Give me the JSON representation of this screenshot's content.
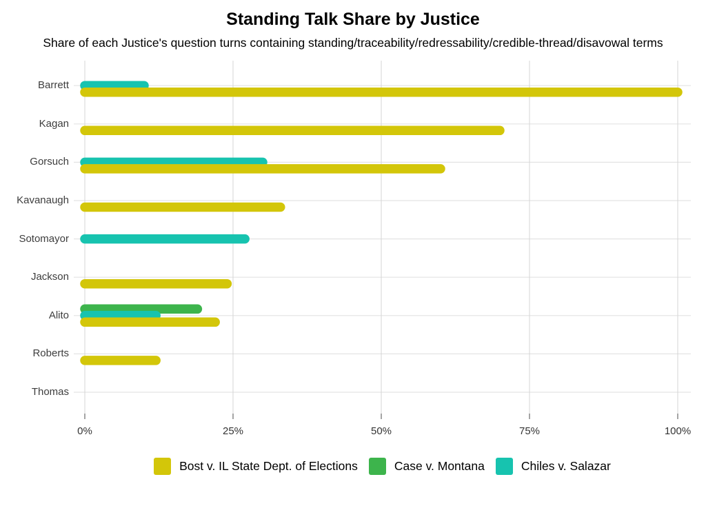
{
  "chart_data": {
    "type": "bar",
    "orientation": "horizontal",
    "title": "Standing Talk Share by Justice",
    "subtitle": "Share of each Justice's question turns containing standing/traceability/redressability/credible-thread/disavowal terms",
    "value_unit": "percent",
    "categories": [
      "Barrett",
      "Kagan",
      "Gorsuch",
      "Kavanaugh",
      "Sotomayor",
      "Jackson",
      "Alito",
      "Roberts",
      "Thomas"
    ],
    "series": [
      {
        "name": "Bost v. IL State Dept. of Elections",
        "color": "#d3c609",
        "values": [
          100,
          70,
          60,
          33,
          null,
          24,
          22,
          12,
          null
        ]
      },
      {
        "name": "Case v. Montana",
        "color": "#3db44c",
        "values": [
          null,
          null,
          null,
          null,
          null,
          null,
          19,
          null,
          null
        ]
      },
      {
        "name": "Chiles v. Salazar",
        "color": "#17c3af",
        "values": [
          10,
          null,
          30,
          null,
          27,
          null,
          12,
          null,
          null
        ]
      }
    ],
    "x_ticks": [
      {
        "label": "0%",
        "value": 0
      },
      {
        "label": "25%",
        "value": 25
      },
      {
        "label": "50%",
        "value": 50
      },
      {
        "label": "75%",
        "value": 75
      },
      {
        "label": "100%",
        "value": 100
      }
    ],
    "xlim": [
      0,
      100
    ],
    "grid": true,
    "legend_position": "bottom"
  }
}
